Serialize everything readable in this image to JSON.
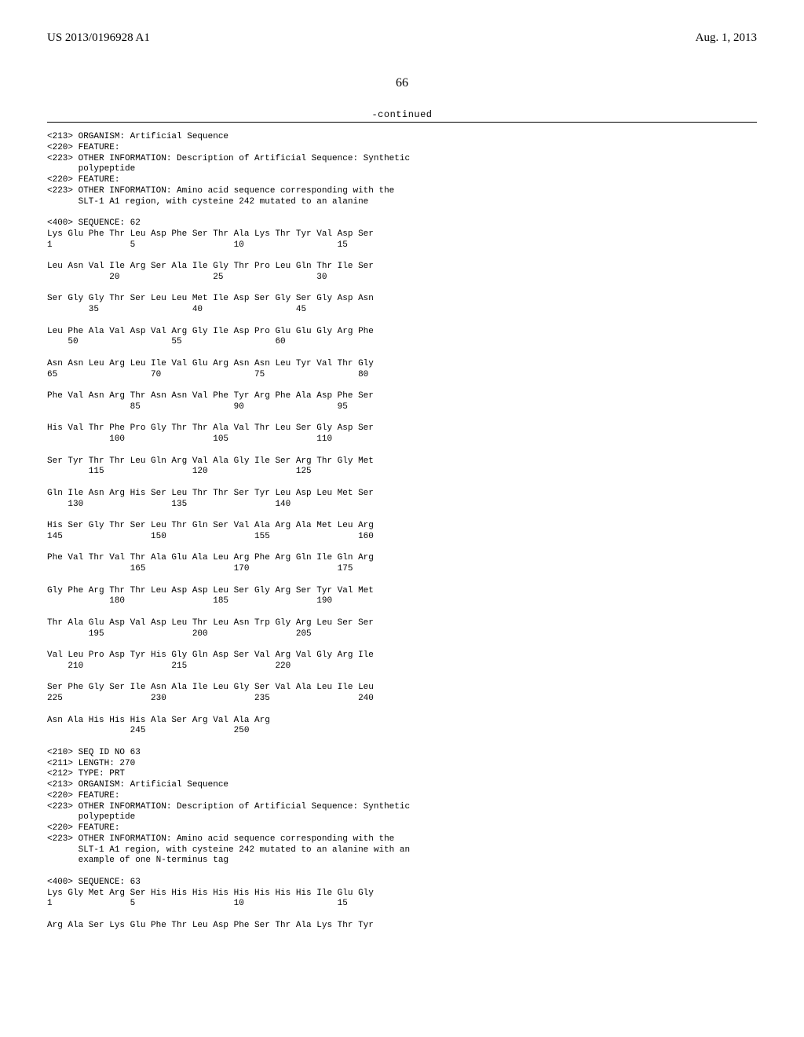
{
  "header": {
    "pub_number": "US 2013/0196928 A1",
    "pub_date": "Aug. 1, 2013"
  },
  "page_number": "66",
  "continued": "-continued",
  "seq_meta_62": [
    "<213> ORGANISM: Artificial Sequence",
    "<220> FEATURE:",
    "<223> OTHER INFORMATION: Description of Artificial Sequence: Synthetic",
    "      polypeptide",
    "<220> FEATURE:",
    "<223> OTHER INFORMATION: Amino acid sequence corresponding with the",
    "      SLT-1 A1 region, with cysteine 242 mutated to an alanine",
    "",
    "<400> SEQUENCE: 62",
    ""
  ],
  "seq_body_62": [
    "Lys Glu Phe Thr Leu Asp Phe Ser Thr Ala Lys Thr Tyr Val Asp Ser",
    "1               5                   10                  15",
    "",
    "Leu Asn Val Ile Arg Ser Ala Ile Gly Thr Pro Leu Gln Thr Ile Ser",
    "            20                  25                  30",
    "",
    "Ser Gly Gly Thr Ser Leu Leu Met Ile Asp Ser Gly Ser Gly Asp Asn",
    "        35                  40                  45",
    "",
    "Leu Phe Ala Val Asp Val Arg Gly Ile Asp Pro Glu Glu Gly Arg Phe",
    "    50                  55                  60",
    "",
    "Asn Asn Leu Arg Leu Ile Val Glu Arg Asn Asn Leu Tyr Val Thr Gly",
    "65                  70                  75                  80",
    "",
    "Phe Val Asn Arg Thr Asn Asn Val Phe Tyr Arg Phe Ala Asp Phe Ser",
    "                85                  90                  95",
    "",
    "His Val Thr Phe Pro Gly Thr Thr Ala Val Thr Leu Ser Gly Asp Ser",
    "            100                 105                 110",
    "",
    "Ser Tyr Thr Thr Leu Gln Arg Val Ala Gly Ile Ser Arg Thr Gly Met",
    "        115                 120                 125",
    "",
    "Gln Ile Asn Arg His Ser Leu Thr Thr Ser Tyr Leu Asp Leu Met Ser",
    "    130                 135                 140",
    "",
    "His Ser Gly Thr Ser Leu Thr Gln Ser Val Ala Arg Ala Met Leu Arg",
    "145                 150                 155                 160",
    "",
    "Phe Val Thr Val Thr Ala Glu Ala Leu Arg Phe Arg Gln Ile Gln Arg",
    "                165                 170                 175",
    "",
    "Gly Phe Arg Thr Thr Leu Asp Asp Leu Ser Gly Arg Ser Tyr Val Met",
    "            180                 185                 190",
    "",
    "Thr Ala Glu Asp Val Asp Leu Thr Leu Asn Trp Gly Arg Leu Ser Ser",
    "        195                 200                 205",
    "",
    "Val Leu Pro Asp Tyr His Gly Gln Asp Ser Val Arg Val Gly Arg Ile",
    "    210                 215                 220",
    "",
    "Ser Phe Gly Ser Ile Asn Ala Ile Leu Gly Ser Val Ala Leu Ile Leu",
    "225                 230                 235                 240",
    "",
    "Asn Ala His His His Ala Ser Arg Val Ala Arg",
    "                245                 250",
    "",
    ""
  ],
  "seq_meta_63": [
    "<210> SEQ ID NO 63",
    "<211> LENGTH: 270",
    "<212> TYPE: PRT",
    "<213> ORGANISM: Artificial Sequence",
    "<220> FEATURE:",
    "<223> OTHER INFORMATION: Description of Artificial Sequence: Synthetic",
    "      polypeptide",
    "<220> FEATURE:",
    "<223> OTHER INFORMATION: Amino acid sequence corresponding with the",
    "      SLT-1 A1 region, with cysteine 242 mutated to an alanine with an",
    "      example of one N-terminus tag",
    "",
    "<400> SEQUENCE: 63",
    ""
  ],
  "seq_body_63": [
    "Lys Gly Met Arg Ser His His His His His His His His Ile Glu Gly",
    "1               5                   10                  15",
    "",
    "Arg Ala Ser Lys Glu Phe Thr Leu Asp Phe Ser Thr Ala Lys Thr Tyr"
  ]
}
